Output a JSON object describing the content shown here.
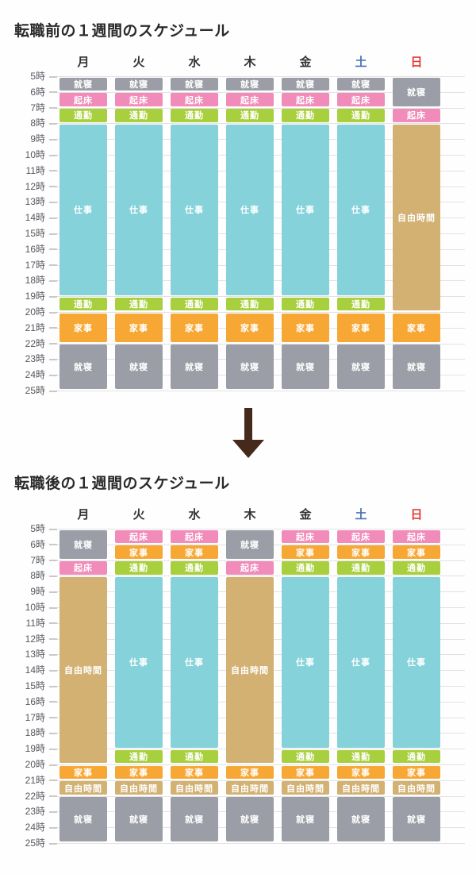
{
  "days": [
    {
      "label": "月",
      "color": "#333333"
    },
    {
      "label": "火",
      "color": "#333333"
    },
    {
      "label": "水",
      "color": "#333333"
    },
    {
      "label": "木",
      "color": "#333333"
    },
    {
      "label": "金",
      "color": "#333333"
    },
    {
      "label": "土",
      "color": "#4a72b8"
    },
    {
      "label": "日",
      "color": "#e23b33"
    }
  ],
  "time_ticks": [
    "5時",
    "6時",
    "7時",
    "8時",
    "9時",
    "10時",
    "11時",
    "12時",
    "13時",
    "14時",
    "15時",
    "16時",
    "17時",
    "18時",
    "19時",
    "20時",
    "21時",
    "22時",
    "23時",
    "24時",
    "25時"
  ],
  "activity_palette": {
    "就寝": "#9b9ea6",
    "起床": "#f18cba",
    "通勤": "#a8cf3d",
    "仕事": "#85d2db",
    "家事": "#f7a734",
    "自由時間": "#d2b173"
  },
  "arrow": {
    "shape": "down-arrow",
    "color": "#452a1b"
  },
  "chart_data": [
    {
      "type": "table",
      "title": "転職前の１週間のスケジュール",
      "x_categories": [
        "月",
        "火",
        "水",
        "木",
        "金",
        "土",
        "日"
      ],
      "y_axis": {
        "unit": "時",
        "start": 5,
        "end": 25
      },
      "columns": [
        [
          {
            "label": "就寝",
            "start": 5,
            "end": 6
          },
          {
            "label": "起床",
            "start": 6,
            "end": 7
          },
          {
            "label": "通勤",
            "start": 7,
            "end": 8
          },
          {
            "label": "仕事",
            "start": 8,
            "end": 19
          },
          {
            "label": "通勤",
            "start": 19,
            "end": 20
          },
          {
            "label": "家事",
            "start": 20,
            "end": 22
          },
          {
            "label": "就寝",
            "start": 22,
            "end": 25
          }
        ],
        [
          {
            "label": "就寝",
            "start": 5,
            "end": 6
          },
          {
            "label": "起床",
            "start": 6,
            "end": 7
          },
          {
            "label": "通勤",
            "start": 7,
            "end": 8
          },
          {
            "label": "仕事",
            "start": 8,
            "end": 19
          },
          {
            "label": "通勤",
            "start": 19,
            "end": 20
          },
          {
            "label": "家事",
            "start": 20,
            "end": 22
          },
          {
            "label": "就寝",
            "start": 22,
            "end": 25
          }
        ],
        [
          {
            "label": "就寝",
            "start": 5,
            "end": 6
          },
          {
            "label": "起床",
            "start": 6,
            "end": 7
          },
          {
            "label": "通勤",
            "start": 7,
            "end": 8
          },
          {
            "label": "仕事",
            "start": 8,
            "end": 19
          },
          {
            "label": "通勤",
            "start": 19,
            "end": 20
          },
          {
            "label": "家事",
            "start": 20,
            "end": 22
          },
          {
            "label": "就寝",
            "start": 22,
            "end": 25
          }
        ],
        [
          {
            "label": "就寝",
            "start": 5,
            "end": 6
          },
          {
            "label": "起床",
            "start": 6,
            "end": 7
          },
          {
            "label": "通勤",
            "start": 7,
            "end": 8
          },
          {
            "label": "仕事",
            "start": 8,
            "end": 19
          },
          {
            "label": "通勤",
            "start": 19,
            "end": 20
          },
          {
            "label": "家事",
            "start": 20,
            "end": 22
          },
          {
            "label": "就寝",
            "start": 22,
            "end": 25
          }
        ],
        [
          {
            "label": "就寝",
            "start": 5,
            "end": 6
          },
          {
            "label": "起床",
            "start": 6,
            "end": 7
          },
          {
            "label": "通勤",
            "start": 7,
            "end": 8
          },
          {
            "label": "仕事",
            "start": 8,
            "end": 19
          },
          {
            "label": "通勤",
            "start": 19,
            "end": 20
          },
          {
            "label": "家事",
            "start": 20,
            "end": 22
          },
          {
            "label": "就寝",
            "start": 22,
            "end": 25
          }
        ],
        [
          {
            "label": "就寝",
            "start": 5,
            "end": 6
          },
          {
            "label": "起床",
            "start": 6,
            "end": 7
          },
          {
            "label": "通勤",
            "start": 7,
            "end": 8
          },
          {
            "label": "仕事",
            "start": 8,
            "end": 19
          },
          {
            "label": "通勤",
            "start": 19,
            "end": 20
          },
          {
            "label": "家事",
            "start": 20,
            "end": 22
          },
          {
            "label": "就寝",
            "start": 22,
            "end": 25
          }
        ],
        [
          {
            "label": "就寝",
            "start": 5,
            "end": 7
          },
          {
            "label": "起床",
            "start": 7,
            "end": 8
          },
          {
            "label": "自由時間",
            "start": 8,
            "end": 20
          },
          {
            "label": "家事",
            "start": 20,
            "end": 22
          },
          {
            "label": "就寝",
            "start": 22,
            "end": 25
          }
        ]
      ]
    },
    {
      "type": "table",
      "title": "転職後の１週間のスケジュール",
      "x_categories": [
        "月",
        "火",
        "水",
        "木",
        "金",
        "土",
        "日"
      ],
      "y_axis": {
        "unit": "時",
        "start": 5,
        "end": 25
      },
      "columns": [
        [
          {
            "label": "就寝",
            "start": 5,
            "end": 7
          },
          {
            "label": "起床",
            "start": 7,
            "end": 8
          },
          {
            "label": "自由時間",
            "start": 8,
            "end": 20
          },
          {
            "label": "家事",
            "start": 20,
            "end": 21
          },
          {
            "label": "自由時間",
            "start": 21,
            "end": 22
          },
          {
            "label": "就寝",
            "start": 22,
            "end": 25
          }
        ],
        [
          {
            "label": "起床",
            "start": 5,
            "end": 6
          },
          {
            "label": "家事",
            "start": 6,
            "end": 7
          },
          {
            "label": "通勤",
            "start": 7,
            "end": 8
          },
          {
            "label": "仕事",
            "start": 8,
            "end": 19
          },
          {
            "label": "通勤",
            "start": 19,
            "end": 20
          },
          {
            "label": "家事",
            "start": 20,
            "end": 21
          },
          {
            "label": "自由時間",
            "start": 21,
            "end": 22
          },
          {
            "label": "就寝",
            "start": 22,
            "end": 25
          }
        ],
        [
          {
            "label": "起床",
            "start": 5,
            "end": 6
          },
          {
            "label": "家事",
            "start": 6,
            "end": 7
          },
          {
            "label": "通勤",
            "start": 7,
            "end": 8
          },
          {
            "label": "仕事",
            "start": 8,
            "end": 19
          },
          {
            "label": "通勤",
            "start": 19,
            "end": 20
          },
          {
            "label": "家事",
            "start": 20,
            "end": 21
          },
          {
            "label": "自由時間",
            "start": 21,
            "end": 22
          },
          {
            "label": "就寝",
            "start": 22,
            "end": 25
          }
        ],
        [
          {
            "label": "就寝",
            "start": 5,
            "end": 7
          },
          {
            "label": "起床",
            "start": 7,
            "end": 8
          },
          {
            "label": "自由時間",
            "start": 8,
            "end": 20
          },
          {
            "label": "家事",
            "start": 20,
            "end": 21
          },
          {
            "label": "自由時間",
            "start": 21,
            "end": 22
          },
          {
            "label": "就寝",
            "start": 22,
            "end": 25
          }
        ],
        [
          {
            "label": "起床",
            "start": 5,
            "end": 6
          },
          {
            "label": "家事",
            "start": 6,
            "end": 7
          },
          {
            "label": "通勤",
            "start": 7,
            "end": 8
          },
          {
            "label": "仕事",
            "start": 8,
            "end": 19
          },
          {
            "label": "通勤",
            "start": 19,
            "end": 20
          },
          {
            "label": "家事",
            "start": 20,
            "end": 21
          },
          {
            "label": "自由時間",
            "start": 21,
            "end": 22
          },
          {
            "label": "就寝",
            "start": 22,
            "end": 25
          }
        ],
        [
          {
            "label": "起床",
            "start": 5,
            "end": 6
          },
          {
            "label": "家事",
            "start": 6,
            "end": 7
          },
          {
            "label": "通勤",
            "start": 7,
            "end": 8
          },
          {
            "label": "仕事",
            "start": 8,
            "end": 19
          },
          {
            "label": "通勤",
            "start": 19,
            "end": 20
          },
          {
            "label": "家事",
            "start": 20,
            "end": 21
          },
          {
            "label": "自由時間",
            "start": 21,
            "end": 22
          },
          {
            "label": "就寝",
            "start": 22,
            "end": 25
          }
        ],
        [
          {
            "label": "起床",
            "start": 5,
            "end": 6
          },
          {
            "label": "家事",
            "start": 6,
            "end": 7
          },
          {
            "label": "通勤",
            "start": 7,
            "end": 8
          },
          {
            "label": "仕事",
            "start": 8,
            "end": 19
          },
          {
            "label": "通勤",
            "start": 19,
            "end": 20
          },
          {
            "label": "家事",
            "start": 20,
            "end": 21
          },
          {
            "label": "自由時間",
            "start": 21,
            "end": 22
          },
          {
            "label": "就寝",
            "start": 22,
            "end": 25
          }
        ]
      ]
    }
  ]
}
